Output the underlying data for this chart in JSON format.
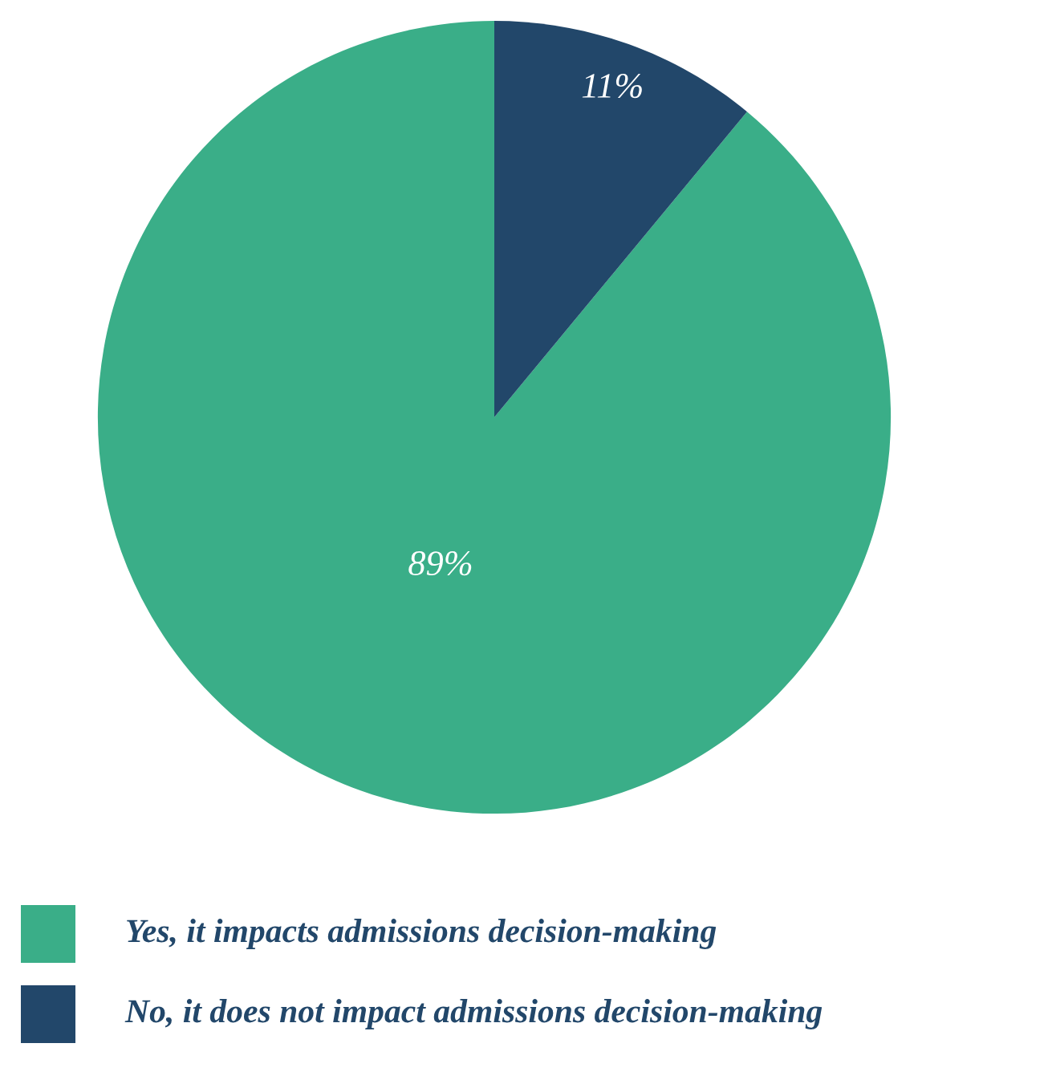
{
  "chart_data": {
    "type": "pie",
    "categories": [
      "Yes, it impacts admissions decision-making",
      "No, it does not impact admissions decision-making"
    ],
    "values": [
      89,
      11
    ],
    "colors": [
      "#3aae88",
      "#22476a"
    ],
    "value_labels": [
      "89%",
      "11%"
    ],
    "legend": "bottom"
  }
}
